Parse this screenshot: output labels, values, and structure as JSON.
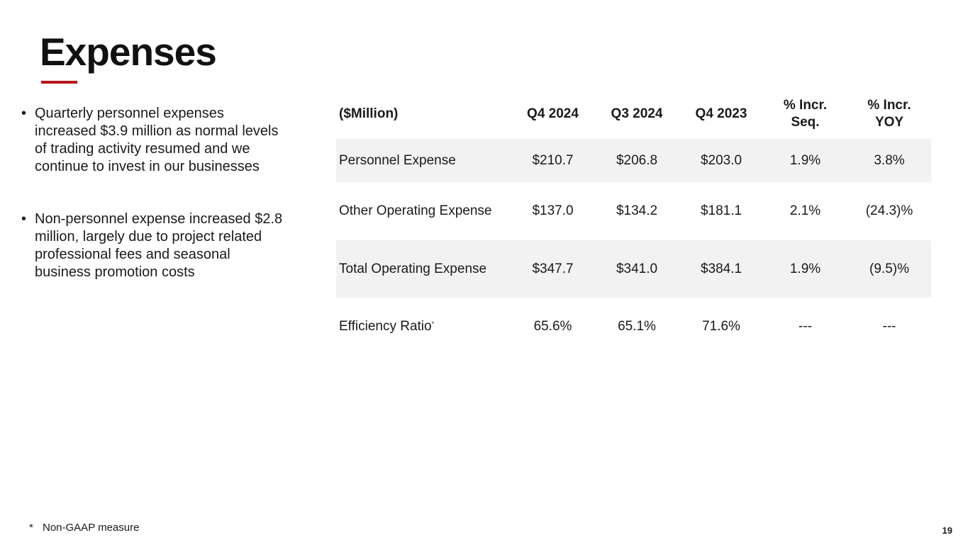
{
  "slide": {
    "title": "Expenses",
    "accent_color": "#b5121b",
    "page_number": "19"
  },
  "bullets": [
    {
      "marker": "•",
      "text": "Quarterly personnel expenses increased $3.9 million as normal levels of trading activity resumed and we continue to invest in our businesses"
    },
    {
      "marker": "•",
      "text": "Non-personnel expense increased $2.8 million, largely due to project related professional fees and seasonal business promotion costs"
    }
  ],
  "table": {
    "header": {
      "label": "($Million)",
      "q4_2024": "Q4 2024",
      "q3_2024": "Q3 2024",
      "q4_2023": "Q4 2023",
      "incr_seq_line1": "% Incr.",
      "incr_seq_line2": "Seq.",
      "incr_yoy_line1": "% Incr.",
      "incr_yoy_line2": "YOY"
    },
    "rows": [
      {
        "label": "Personnel Expense",
        "q4_2024": "$210.7",
        "q3_2024": "$206.8",
        "q4_2023": "$203.0",
        "incr_seq": "1.9%",
        "incr_yoy": "3.8%"
      },
      {
        "label": "Other Operating Expense",
        "q4_2024": "$137.0",
        "q3_2024": "$134.2",
        "q4_2023": "$181.1",
        "incr_seq": "2.1%",
        "incr_yoy": "(24.3)%"
      },
      {
        "label": "Total Operating Expense",
        "q4_2024": "$347.7",
        "q3_2024": "$341.0",
        "q4_2023": "$384.1",
        "incr_seq": "1.9%",
        "incr_yoy": "(9.5)%"
      },
      {
        "label": "Efficiency Ratio",
        "label_superscript": "*",
        "q4_2024": "65.6%",
        "q3_2024": "65.1%",
        "q4_2023": "71.6%",
        "incr_seq": "---",
        "incr_yoy": "---"
      }
    ]
  },
  "footnote": {
    "marker": "*",
    "text": "Non-GAAP measure"
  }
}
